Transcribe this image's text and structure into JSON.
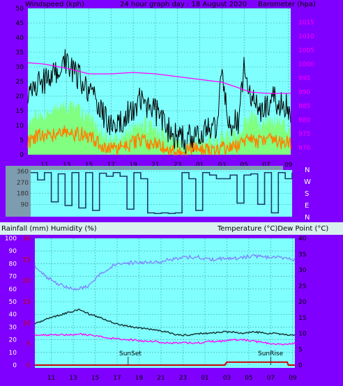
{
  "colors": {
    "background": "#8000ff",
    "plot_bg": "#80ffff",
    "grid": "#40a0a0",
    "wind_gust": "#000000",
    "wind_avg": "#80ff80",
    "wind_min": "#ff8000",
    "barometer": "#ff00ff",
    "direction": "#1a3a6a",
    "humidity": "#8080ff",
    "temperature": "#1a3a3a",
    "dewpoint": "#ff00ff",
    "rainfall": "#cc0000"
  },
  "header": {
    "wind_label": "Windspeed (kph)",
    "title": "24 hour graph day : 18 August 2020",
    "baro_label": "Barometer (hpa)"
  },
  "bottom_header": {
    "left": "Rainfall (mm)  Humidity (%)",
    "right": "Temperature (°C)Dew Point (°C)"
  },
  "compass": [
    "N",
    "W",
    "S",
    "E",
    "N"
  ],
  "x_ticks": [
    "11",
    "13",
    "15",
    "17",
    "19",
    "21",
    "23",
    "01",
    "03",
    "05",
    "07",
    "09"
  ],
  "annotations": {
    "sunset": "SunSet",
    "sunrise": "SunRise"
  },
  "chart_data": [
    {
      "type": "line",
      "name": "wind",
      "x_range": [
        9.5,
        33.2
      ],
      "y_left": {
        "label": "Windspeed (kph)",
        "ticks": [
          0,
          5,
          10,
          15,
          20,
          25,
          30,
          35,
          40,
          45,
          50
        ],
        "lim": [
          0,
          50
        ]
      },
      "y_right": {
        "label": "Barometer (hpa)",
        "ticks": [
          970,
          975,
          980,
          985,
          990,
          995,
          1000,
          1005,
          1010,
          1015
        ],
        "lim": [
          967.5,
          1020
        ]
      },
      "grid": true,
      "series": [
        {
          "name": "gust",
          "x": [
            9.5,
            10.5,
            11.5,
            12.5,
            13.0,
            13.5,
            14.5,
            15.5,
            16.5,
            17.5,
            18.5,
            19.5,
            20.5,
            21.5,
            22.5,
            23.5,
            24.5,
            25.5,
            26.5,
            27.0,
            27.5,
            28.5,
            29.0,
            29.5,
            30.5,
            31.5,
            32.5,
            33.2
          ],
          "values": [
            18,
            25,
            26,
            30,
            33,
            29,
            25,
            20,
            12,
            9,
            14,
            18,
            17,
            12,
            7,
            5,
            6,
            9,
            8,
            31,
            10,
            12,
            30,
            20,
            16,
            19,
            18,
            15
          ]
        },
        {
          "name": "average",
          "x": [
            9.5,
            10.5,
            11.5,
            12.5,
            13.5,
            14.5,
            15.5,
            16.5,
            17.5,
            18.5,
            19.5,
            20.5,
            21.5,
            22.5,
            23.5,
            24.5,
            25.5,
            26.5,
            27.5,
            28.5,
            29.5,
            30.5,
            31.5,
            32.5,
            33.2
          ],
          "values": [
            10,
            14,
            14,
            17,
            16,
            14,
            11,
            6,
            5,
            8,
            11,
            10,
            7,
            4,
            3,
            4,
            5,
            5,
            6,
            7,
            14,
            10,
            12,
            11,
            9
          ]
        },
        {
          "name": "minimum",
          "x": [
            9.5,
            10.5,
            11.5,
            12.5,
            13.5,
            14.5,
            15.5,
            16.5,
            17.5,
            18.5,
            19.5,
            20.5,
            21.5,
            22.5,
            23.5,
            24.5,
            25.5,
            26.5,
            27.5,
            28.5,
            29.5,
            30.5,
            31.5,
            32.5,
            33.2
          ],
          "values": [
            4,
            7,
            6,
            8,
            7,
            7,
            5,
            2,
            2,
            3,
            5,
            4,
            3,
            1,
            1,
            2,
            2,
            2,
            2,
            3,
            6,
            4,
            5,
            4,
            4
          ]
        },
        {
          "name": "barometer",
          "axis": "right",
          "x": [
            9.5,
            11.0,
            13.0,
            15.0,
            17.0,
            19.0,
            21.0,
            23.0,
            25.0,
            27.0,
            28.5,
            29.5,
            31.0,
            33.2
          ],
          "values": [
            1000.5,
            1000,
            998.5,
            996.5,
            996.5,
            997,
            996.5,
            995.5,
            994.5,
            993.5,
            991.5,
            990,
            989.5,
            989.5
          ]
        }
      ]
    },
    {
      "type": "line",
      "name": "wind-direction",
      "x_range": [
        9.5,
        33.2
      ],
      "y_left": {
        "ticks": [
          90,
          180,
          270,
          360
        ],
        "lim": [
          0,
          360
        ]
      },
      "series": [
        {
          "name": "direction",
          "values": [
            350,
            290,
            350,
            110,
            340,
            80,
            350,
            60,
            350,
            40,
            345,
            320,
            350,
            320,
            50,
            350,
            300,
            20,
            15,
            20,
            15,
            20,
            350,
            300,
            40,
            350,
            330,
            300,
            300,
            330,
            100,
            330,
            340,
            90,
            350,
            20,
            350,
            300,
            350
          ]
        }
      ]
    },
    {
      "type": "line",
      "name": "temp-humidity",
      "x_range": [
        9.5,
        33.2
      ],
      "y_left": {
        "label": "Humidity (%)",
        "ticks": [
          0,
          10,
          20,
          30,
          40,
          50,
          60,
          70,
          80,
          90,
          100
        ],
        "lim": [
          0,
          100
        ]
      },
      "y_left_inner": {
        "label": "Rainfall (mm)",
        "ticks": [
          0,
          5,
          10,
          15,
          20,
          25,
          30
        ],
        "lim": [
          0,
          30
        ]
      },
      "y_right": {
        "label": "Temperature (°C)Dew Point (°C)",
        "ticks": [
          0,
          5,
          10,
          15,
          20,
          25,
          30,
          35,
          40
        ],
        "lim": [
          0,
          40
        ]
      },
      "grid": true,
      "series": [
        {
          "name": "humidity",
          "x": [
            9.5,
            10.5,
            11.5,
            12.5,
            13.5,
            14.5,
            15.0,
            15.5,
            16.5,
            17.5,
            18.5,
            19.5,
            20.5,
            21.5,
            22.5,
            23.5,
            24.5,
            25.5,
            26.5,
            27.5,
            28.5,
            29.5,
            30.5,
            31.5,
            32.5,
            33.2
          ],
          "values": [
            78,
            70,
            64,
            61,
            60,
            63,
            68,
            72,
            78,
            80,
            81,
            81,
            81,
            83,
            84,
            85,
            85,
            83,
            84,
            84,
            85,
            86,
            85,
            85,
            84,
            83
          ]
        },
        {
          "name": "temperature",
          "axis": "right",
          "x": [
            9.5,
            10.5,
            11.5,
            12.5,
            13.5,
            14.5,
            15.5,
            16.5,
            17.5,
            18.5,
            19.5,
            20.5,
            21.5,
            22.5,
            23.5,
            24.5,
            25.5,
            26.5,
            27.5,
            28.5,
            29.5,
            30.5,
            31.5,
            32.5,
            33.2
          ],
          "values": [
            13,
            14.5,
            15.5,
            16.5,
            17.5,
            16,
            15,
            13.5,
            12.5,
            12,
            11.5,
            11,
            10.5,
            9.5,
            9.5,
            10,
            10,
            10.5,
            10.5,
            10,
            10.5,
            10,
            10,
            9.5,
            9.5
          ]
        },
        {
          "name": "dewpoint",
          "axis": "right",
          "x": [
            9.5,
            10.5,
            11.5,
            12.5,
            13.5,
            14.5,
            15.5,
            16.5,
            17.5,
            18.5,
            19.5,
            20.5,
            21.5,
            22.5,
            23.5,
            24.5,
            25.5,
            26.5,
            27.5,
            28.5,
            29.5,
            30.5,
            31.5,
            32.5,
            33.2
          ],
          "values": [
            9.5,
            9.5,
            9.5,
            9.5,
            9.8,
            9.5,
            9,
            8.5,
            8,
            8,
            7.5,
            7.5,
            7,
            7,
            7,
            7,
            7.5,
            7.5,
            8,
            8,
            7.5,
            7,
            6.5,
            6.5,
            7
          ]
        },
        {
          "name": "rainfall",
          "axis": "left_inner",
          "x": [
            9.5,
            26.8,
            27.0,
            32.5,
            32.6,
            33.2
          ],
          "values": [
            0,
            0,
            0.7,
            0.7,
            0,
            0
          ]
        }
      ]
    }
  ]
}
